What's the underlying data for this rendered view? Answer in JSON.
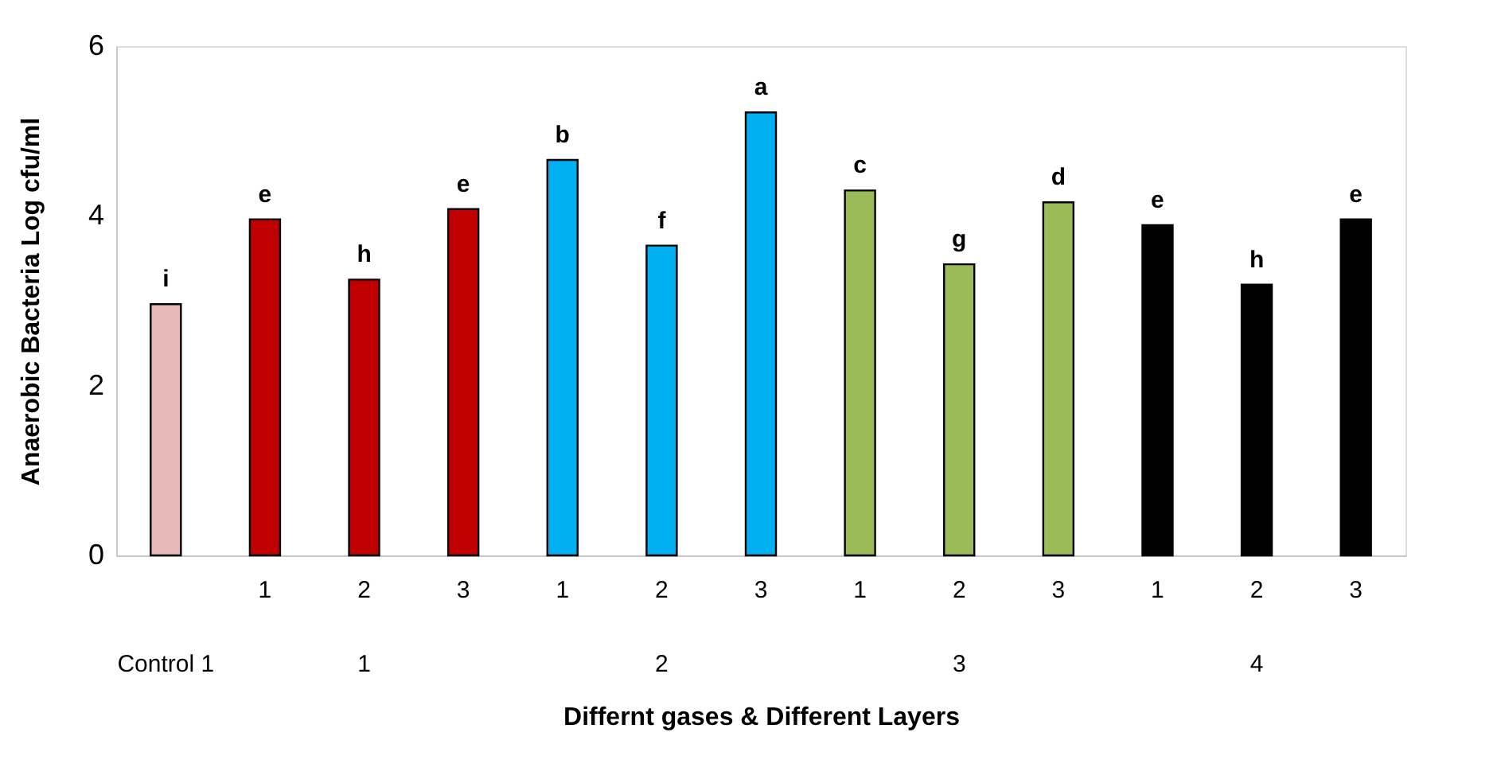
{
  "chart_data": {
    "type": "bar",
    "xlabel": "Differnt gases & Different Layers",
    "ylabel": "Anaerobic Bacteria Log cfu/ml",
    "categories": [
      null,
      "1",
      "2",
      "3",
      "1",
      "2",
      "3",
      "1",
      "2",
      "3",
      "1",
      "2",
      "3"
    ],
    "values": [
      2.96,
      3.96,
      3.25,
      4.08,
      4.66,
      3.65,
      5.22,
      4.3,
      3.43,
      4.16,
      3.89,
      3.19,
      3.96
    ],
    "colors": [
      "#e6b8b7",
      "#c00000",
      "#c00000",
      "#c00000",
      "#00b0f0",
      "#00b0f0",
      "#00b0f0",
      "#9bbb59",
      "#9bbb59",
      "#9bbb59",
      "#000000",
      "#000000",
      "#000000"
    ],
    "value_labels": [
      "i",
      "e",
      "h",
      "e",
      "b",
      "f",
      "a",
      "c",
      "g",
      "d",
      "e",
      "h",
      "e"
    ],
    "annotations": [
      "Control 1",
      "1",
      "2",
      "3",
      "4"
    ],
    "ylim": [
      0,
      6
    ],
    "yticks": [
      0,
      2,
      4,
      6
    ],
    "grid": false
  }
}
